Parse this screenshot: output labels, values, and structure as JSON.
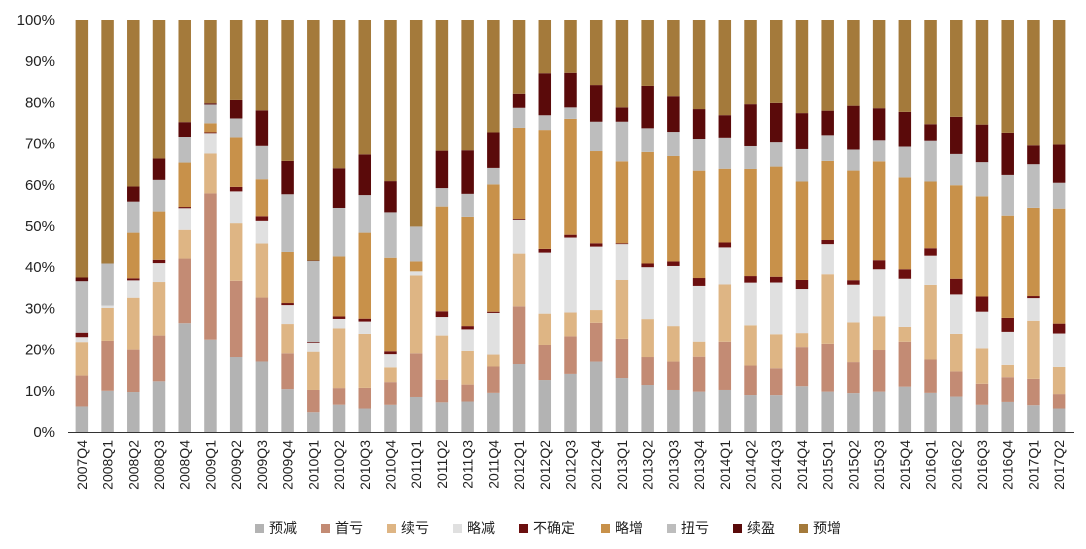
{
  "chart_data": {
    "type": "bar",
    "stacked": true,
    "normalized": true,
    "categories": [
      "2007Q4",
      "2008Q1",
      "2008Q2",
      "2008Q3",
      "2008Q4",
      "2009Q1",
      "2009Q2",
      "2009Q3",
      "2009Q4",
      "2010Q1",
      "2010Q2",
      "2010Q3",
      "2010Q4",
      "2011Q1",
      "2011Q2",
      "2011Q3",
      "2011Q4",
      "2012Q1",
      "2012Q2",
      "2012Q3",
      "2012Q4",
      "2013Q1",
      "2013Q2",
      "2013Q3",
      "2013Q4",
      "2014Q1",
      "2014Q2",
      "2014Q3",
      "2014Q4",
      "2015Q1",
      "2015Q2",
      "2015Q3",
      "2015Q4",
      "2016Q1",
      "2016Q2",
      "2016Q3",
      "2016Q4",
      "2017Q1",
      "2017Q2"
    ],
    "yticks": [
      "0%",
      "10%",
      "20%",
      "30%",
      "40%",
      "50%",
      "60%",
      "70%",
      "80%",
      "90%",
      "100%"
    ],
    "ylim": [
      0,
      100
    ],
    "legend_position": "bottom",
    "series": [
      {
        "name": "预减",
        "color": "#b3b3b3",
        "values": [
          6.2,
          10,
          9.7,
          12.3,
          26.4,
          22.4,
          18.2,
          17.1,
          10.4,
          4.8,
          6.6,
          5.7,
          6.6,
          8.5,
          7.2,
          7.4,
          9.5,
          16.5,
          12.6,
          14.1,
          17.1,
          13.1,
          11.4,
          10.2,
          9.7,
          10.2,
          9,
          8.9,
          11.1,
          9.8,
          9.4,
          9.8,
          11,
          9.5,
          8.6,
          6.6,
          7.3,
          6.5,
          5.7
        ]
      },
      {
        "name": "首亏",
        "color": "#c38b74",
        "values": [
          7.5,
          12.1,
          10.3,
          11.1,
          15.7,
          35.5,
          18.5,
          15.5,
          8.7,
          5.4,
          4,
          5,
          5.5,
          10.6,
          5.5,
          4.1,
          6.4,
          14,
          8.5,
          9.1,
          9.4,
          9.5,
          6.8,
          6.9,
          8.4,
          11.7,
          7.2,
          6.5,
          9.5,
          11.6,
          7.5,
          10.1,
          10.9,
          8.1,
          6.1,
          5.1,
          6,
          6.4,
          3.5
        ]
      },
      {
        "name": "续亏",
        "color": "#deb584",
        "values": [
          8.1,
          8,
          12.6,
          13,
          7,
          9.7,
          14,
          13.1,
          7.1,
          9.3,
          14.4,
          13.1,
          3.6,
          18.9,
          10.7,
          8.2,
          2.9,
          12.8,
          7.6,
          5.8,
          3.1,
          14.3,
          9.2,
          8.6,
          3.6,
          13.9,
          9.8,
          8.2,
          3.4,
          16.9,
          9.6,
          8.2,
          3.6,
          18.1,
          9.1,
          8.6,
          3,
          14.1,
          6.6
        ]
      },
      {
        "name": "略减",
        "color": "#e0e0e0",
        "values": [
          1.2,
          0.6,
          4.2,
          4.6,
          5.2,
          4.9,
          7.7,
          5.5,
          4.6,
          2.1,
          2.3,
          3,
          3.2,
          1,
          4.5,
          5.2,
          10.1,
          8.2,
          14.8,
          18.2,
          15.4,
          8.7,
          12.6,
          14.6,
          13.4,
          9,
          10.4,
          12.5,
          10.7,
          7.3,
          9.1,
          11.4,
          11.7,
          7.1,
          9.6,
          8.9,
          8,
          5.5,
          8.1
        ]
      },
      {
        "name": "不确定",
        "color": "#6b0f0f",
        "values": [
          1.1,
          0,
          0.5,
          0.8,
          0.3,
          0.2,
          1.1,
          1.1,
          0.5,
          0.2,
          0.6,
          0.7,
          0.7,
          0,
          1.4,
          0.8,
          0.3,
          0.2,
          0.9,
          0.7,
          0.8,
          0.2,
          0.9,
          1.1,
          1.9,
          1.2,
          1.6,
          1.4,
          2.2,
          1,
          1.1,
          2.2,
          2.3,
          1.8,
          3.8,
          3.7,
          3.4,
          0.5,
          2.4
        ]
      },
      {
        "name": "略增",
        "color": "#c8914a",
        "values": [
          0,
          0,
          11.1,
          11.7,
          10.8,
          2.2,
          12,
          9,
          12.4,
          0,
          14.5,
          20.9,
          22.7,
          2.4,
          25.4,
          26.5,
          30.9,
          22.1,
          28.8,
          28.1,
          22.4,
          19.9,
          27.1,
          25.6,
          25.8,
          17.9,
          26.1,
          26.6,
          23.9,
          19.2,
          26.5,
          24,
          22.3,
          16.2,
          22.7,
          24.3,
          24.8,
          21.4,
          27.9
        ]
      },
      {
        "name": "扭亏",
        "color": "#bdbdbd",
        "values": [
          12.5,
          10.2,
          7.5,
          7.7,
          6.2,
          4.6,
          4.6,
          8.1,
          14,
          19.7,
          11.7,
          9.1,
          11,
          8.5,
          4.5,
          5.6,
          4,
          4.9,
          3.6,
          2.8,
          7.1,
          9.6,
          5.7,
          5.8,
          7.6,
          7.5,
          5.6,
          5.9,
          7.9,
          6.2,
          5.1,
          5.1,
          7.5,
          9.9,
          7.6,
          8.3,
          9.9,
          10.6,
          6.3
        ]
      },
      {
        "name": "续盈",
        "color": "#5a0a0a",
        "values": [
          0.9,
          0,
          3.7,
          5.2,
          3.6,
          0.3,
          4.5,
          8.6,
          8.1,
          0.1,
          9.6,
          9.9,
          7.6,
          0,
          9.1,
          10.6,
          8.6,
          3.4,
          10.2,
          8.4,
          8.9,
          3.5,
          10.3,
          8.7,
          7.2,
          5.5,
          10.2,
          9.5,
          8.7,
          6,
          10.6,
          7.8,
          8.4,
          4,
          9,
          9.1,
          10.2,
          4.6,
          9.3
        ]
      },
      {
        "name": "预增",
        "color": "#a47a3b",
        "values": [
          62.5,
          59.1,
          40.4,
          33.6,
          24.8,
          20.2,
          19.4,
          21.9,
          34.2,
          58.4,
          35.8,
          32.6,
          39.1,
          50.1,
          31.7,
          31.6,
          27.3,
          17.9,
          12.9,
          12.8,
          15.8,
          21.2,
          16,
          18.5,
          21.4,
          23.1,
          20.5,
          20,
          22.6,
          22,
          20.7,
          21.4,
          22.3,
          25.3,
          23.5,
          25.4,
          27.4,
          30.4,
          30.2
        ]
      }
    ]
  }
}
